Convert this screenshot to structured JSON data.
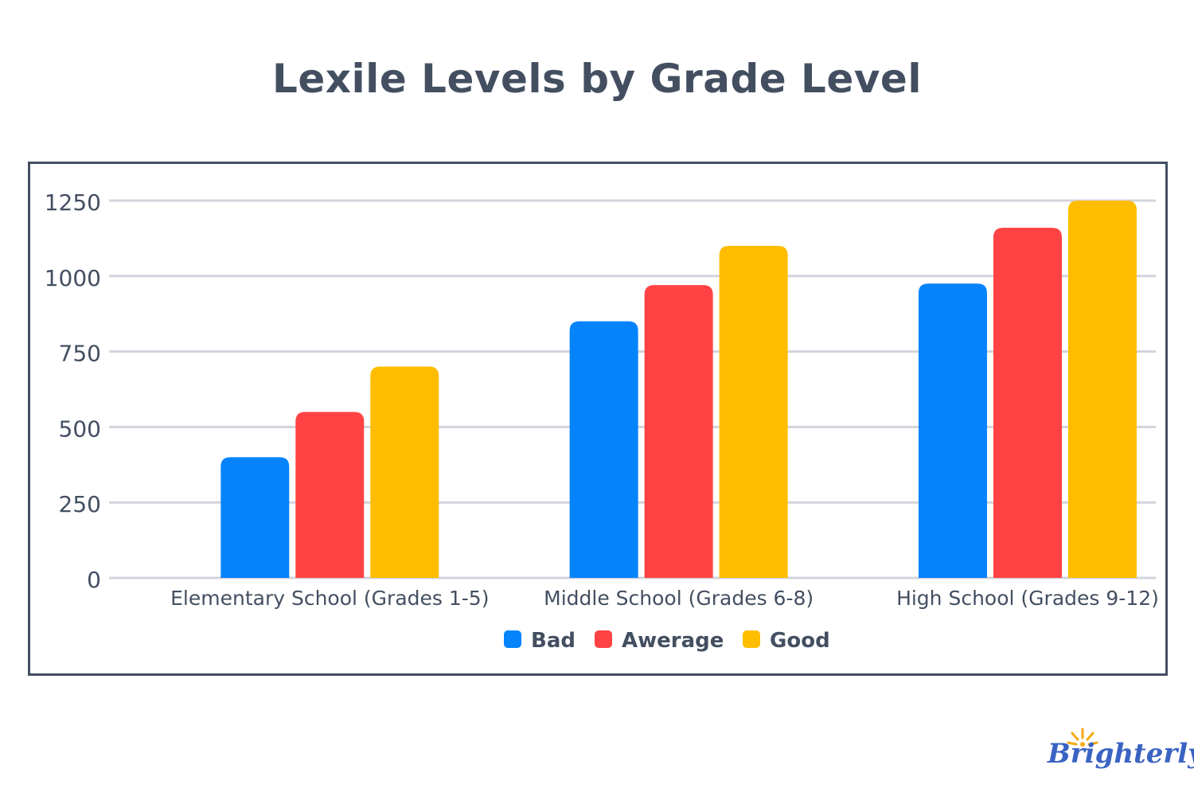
{
  "chart_data": {
    "type": "bar",
    "title": "Lexile Levels by Grade Level",
    "categories": [
      "Elementary School (Grades 1-5)",
      "Middle School (Grades 6-8)",
      "High School (Grades 9-12)"
    ],
    "series": [
      {
        "name": "Bad",
        "color": "#0483fb",
        "values": [
          400,
          850,
          975
        ]
      },
      {
        "name": "Awerage",
        "color": "#ff4344",
        "values": [
          550,
          970,
          1160
        ]
      },
      {
        "name": "Good",
        "color": "#ffbd00",
        "values": [
          700,
          1100,
          1250
        ]
      }
    ],
    "yticks": [
      "0",
      "250",
      "500",
      "750",
      "1000",
      "1250"
    ],
    "ylim": [
      0,
      1250
    ],
    "grid": true,
    "legend_position": "bottom",
    "xlabel": "",
    "ylabel": ""
  },
  "branding": {
    "logo_text": "Brighterly"
  }
}
